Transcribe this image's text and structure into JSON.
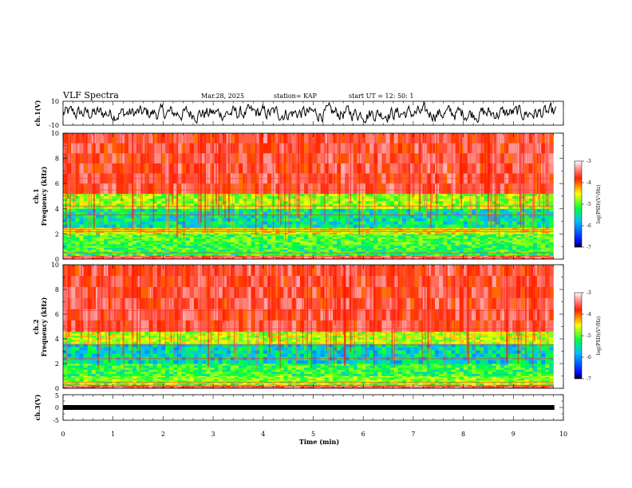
{
  "header": {
    "title": "VLF Spectra",
    "date": "Mar.28, 2025",
    "station": "station= KAP",
    "start": "start UT = 12: 50: 1"
  },
  "chart_data": [
    {
      "type": "line",
      "panel": "ch1-waveform",
      "ylabel": "ch.1(V)",
      "ylim": [
        -10,
        10
      ],
      "y_ticks": [
        "10",
        "-10"
      ],
      "xlim": [
        0,
        10
      ],
      "baseline": 0,
      "amplitude": 6,
      "color": "#000000"
    },
    {
      "type": "heatmap",
      "panel": "ch1-spectrogram",
      "ylabel": "ch.1",
      "ylabel2": "Frequency (kHz)",
      "ylim": [
        0,
        10
      ],
      "y_ticks": [
        "0",
        "2",
        "4",
        "6",
        "8",
        "10"
      ],
      "xlim": [
        0,
        9.8
      ],
      "colorbar": {
        "label": "log(PSD)(V²/Hz)",
        "range": [
          -7,
          -3
        ],
        "ticks": [
          "-3",
          "-4",
          "-5",
          "-6",
          "-7"
        ]
      },
      "bands": [
        {
          "f_range": [
            0,
            0.3
          ],
          "log_psd": -3.6
        },
        {
          "f_range": [
            0.3,
            1.2
          ],
          "log_psd": -5.3
        },
        {
          "f_range": [
            1.2,
            2.0
          ],
          "log_psd": -5.2
        },
        {
          "f_range": [
            2.0,
            2.5
          ],
          "log_psd": -4.6
        },
        {
          "f_range": [
            2.5,
            4.0
          ],
          "log_psd": -5.6
        },
        {
          "f_range": [
            4.0,
            5.2
          ],
          "log_psd": -4.9
        },
        {
          "f_range": [
            5.2,
            10.0
          ],
          "log_psd": -3.7
        }
      ],
      "lines_khz": [
        0.5,
        2.2,
        2.35,
        3.5,
        4.2,
        5.5,
        6.4
      ]
    },
    {
      "type": "heatmap",
      "panel": "ch2-spectrogram",
      "ylabel": "ch.2",
      "ylabel2": "Frequency (kHz)",
      "ylim": [
        0,
        10
      ],
      "y_ticks": [
        "0",
        "2",
        "4",
        "6",
        "8",
        "10"
      ],
      "xlim": [
        0,
        9.8
      ],
      "colorbar": {
        "label": "log(PSD)(V²/Hz)",
        "range": [
          -7,
          -3
        ],
        "ticks": [
          "-3",
          "-4",
          "-5",
          "-6",
          "-7"
        ]
      },
      "bands": [
        {
          "f_range": [
            0,
            0.3
          ],
          "log_psd": -3.6
        },
        {
          "f_range": [
            0.3,
            1.0
          ],
          "log_psd": -5.0
        },
        {
          "f_range": [
            1.0,
            2.0
          ],
          "log_psd": -5.3
        },
        {
          "f_range": [
            2.0,
            3.6
          ],
          "log_psd": -5.7
        },
        {
          "f_range": [
            3.6,
            4.6
          ],
          "log_psd": -4.8
        },
        {
          "f_range": [
            4.6,
            10.0
          ],
          "log_psd": -3.7
        }
      ],
      "lines_khz": [
        0.5,
        2.4,
        3.5,
        4.8,
        6.3
      ]
    },
    {
      "type": "line",
      "panel": "ch3-waveform",
      "ylabel": "ch.3(V)",
      "ylim": [
        -5,
        5
      ],
      "y_ticks": [
        "5",
        "0",
        "-5"
      ],
      "xlim": [
        0,
        10
      ],
      "baseline": 0,
      "amplitude": 0.4,
      "xlabel": "Time (min)",
      "x_ticks": [
        "0",
        "1",
        "2",
        "3",
        "4",
        "5",
        "6",
        "7",
        "8",
        "9",
        "10"
      ],
      "color": "#000000"
    }
  ]
}
